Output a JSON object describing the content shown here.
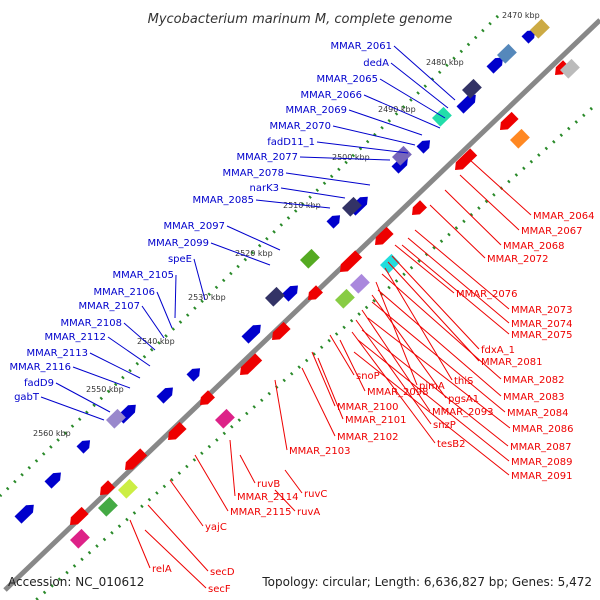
{
  "title": "Mycobacterium marinum M, complete genome",
  "footer": {
    "accession": "Accession: NC_010612",
    "topology": "Topology: circular; Length: 6,636,827 bp; Genes: 5,472"
  },
  "colors": {
    "forward": "#0000cc",
    "reverse": "#ee0000",
    "backbone": "#888888",
    "ticks": "#2a8a2a"
  },
  "kbp_ticks": [
    "2470 kbp",
    "2480 kbp",
    "2490 kbp",
    "2500 kbp",
    "2510 kbp",
    "2520 kbp",
    "2530 kbp",
    "2540 kbp",
    "2550 kbp",
    "2560 kbp"
  ],
  "forward_labels": [
    "MMAR_2061",
    "dedA",
    "MMAR_2065",
    "MMAR_2066",
    "MMAR_2069",
    "MMAR_2070",
    "fadD11_1",
    "MMAR_2077",
    "MMAR_2078",
    "narK3",
    "MMAR_2085",
    "MMAR_2097",
    "MMAR_2099",
    "speE",
    "MMAR_2105",
    "MMAR_2106",
    "MMAR_2107",
    "MMAR_2108",
    "MMAR_2112",
    "MMAR_2113",
    "MMAR_2116",
    "fadD9",
    "gabT"
  ],
  "reverse_labels": [
    "MMAR_2064",
    "MMAR_2067",
    "MMAR_2068",
    "MMAR_2072",
    "MMAR_2076",
    "MMAR_2073",
    "MMAR_2074",
    "MMAR_2075",
    "fdxA_1",
    "MMAR_2081",
    "thiS",
    "MMAR_2082",
    "pimA",
    "MMAR_2083",
    "pgsA1",
    "snoP",
    "MMAR_2098",
    "MMAR_2084",
    "MMAR_2093",
    "MMAR_2086",
    "snzP",
    "MMAR_2100",
    "MMAR_2101",
    "MMAR_2087",
    "tesB2",
    "MMAR_2089",
    "MMAR_2102",
    "MMAR_2091",
    "MMAR_2103",
    "ruvC",
    "ruvB",
    "MMAR_2114",
    "ruvA",
    "MMAR_2115",
    "yajC",
    "relA",
    "secD",
    "secF"
  ]
}
